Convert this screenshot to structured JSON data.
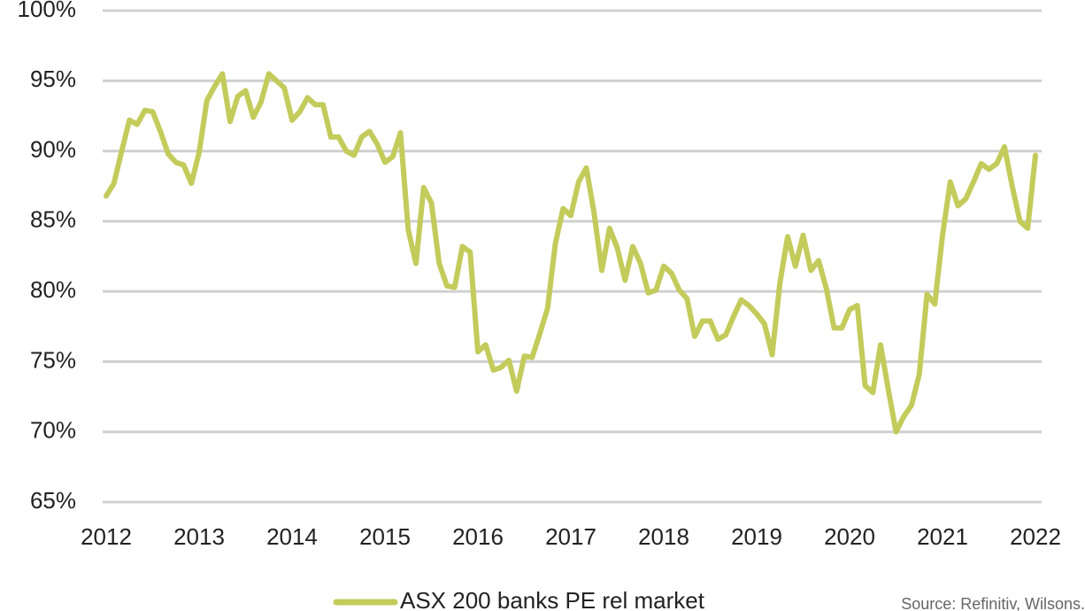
{
  "chart_data": {
    "type": "line",
    "categories": [
      "2012",
      null,
      null,
      null,
      null,
      null,
      null,
      null,
      null,
      null,
      null,
      null,
      "2013",
      null,
      null,
      null,
      null,
      null,
      null,
      null,
      null,
      null,
      null,
      null,
      "2014",
      null,
      null,
      null,
      null,
      null,
      null,
      null,
      null,
      null,
      null,
      null,
      "2015",
      null,
      null,
      null,
      null,
      null,
      null,
      null,
      null,
      null,
      null,
      null,
      "2016",
      null,
      null,
      null,
      null,
      null,
      null,
      null,
      null,
      null,
      null,
      null,
      "2017",
      null,
      null,
      null,
      null,
      null,
      null,
      null,
      null,
      null,
      null,
      null,
      "2018",
      null,
      null,
      null,
      null,
      null,
      null,
      null,
      null,
      null,
      null,
      null,
      "2019",
      null,
      null,
      null,
      null,
      null,
      null,
      null,
      null,
      null,
      null,
      null,
      "2020",
      null,
      null,
      null,
      null,
      null,
      null,
      null,
      null,
      null,
      null,
      null,
      "2021",
      null,
      null,
      null,
      null,
      null,
      null,
      null,
      null,
      null,
      null,
      null,
      "2022"
    ],
    "series": [
      {
        "name": "ASX 200 banks PE rel market",
        "color": "#c3cb5b",
        "values": [
          86.8,
          87.7,
          90.0,
          92.2,
          91.9,
          92.9,
          92.8,
          91.4,
          89.8,
          89.2,
          89.0,
          87.7,
          89.9,
          93.6,
          94.6,
          95.5,
          92.1,
          93.9,
          94.3,
          92.4,
          93.5,
          95.5,
          95.0,
          94.5,
          92.2,
          92.8,
          93.8,
          93.3,
          93.3,
          91.0,
          91.0,
          90.0,
          89.7,
          91.0,
          91.4,
          90.5,
          89.2,
          89.6,
          91.3,
          84.4,
          82.0,
          87.4,
          86.3,
          82.0,
          80.4,
          80.3,
          83.2,
          82.8,
          75.7,
          76.2,
          74.4,
          74.6,
          75.1,
          72.9,
          75.4,
          75.3,
          77.0,
          78.8,
          83.4,
          85.9,
          85.4,
          87.8,
          88.8,
          85.6,
          81.5,
          84.5,
          83.1,
          80.8,
          83.2,
          82.0,
          79.9,
          80.1,
          81.8,
          81.3,
          80.1,
          79.5,
          76.8,
          77.9,
          77.9,
          76.6,
          76.9,
          78.2,
          79.4,
          79.0,
          78.4,
          77.7,
          75.5,
          80.6,
          83.9,
          81.8,
          84.0,
          81.5,
          82.2,
          80.2,
          77.4,
          77.4,
          78.7,
          79.0,
          73.3,
          72.8,
          76.2,
          73.0,
          70.0,
          71.1,
          71.9,
          74.1,
          79.8,
          79.1,
          84.0,
          87.8,
          86.1,
          86.6,
          87.8,
          89.1,
          88.7,
          89.1,
          90.3,
          87.5,
          85.0,
          84.5,
          89.7
        ]
      }
    ],
    "ylim": [
      65,
      100
    ],
    "yticks": [
      {
        "value": 65,
        "label": "65%"
      },
      {
        "value": 70,
        "label": "70%"
      },
      {
        "value": 75,
        "label": "75%"
      },
      {
        "value": 80,
        "label": "80%"
      },
      {
        "value": 85,
        "label": "85%"
      },
      {
        "value": 90,
        "label": "90%"
      },
      {
        "value": 95,
        "label": "95%"
      },
      {
        "value": 100,
        "label": "100%"
      }
    ],
    "grid": true,
    "legend": "bottom",
    "source": "Source: Refinitiv, Wilsons."
  }
}
